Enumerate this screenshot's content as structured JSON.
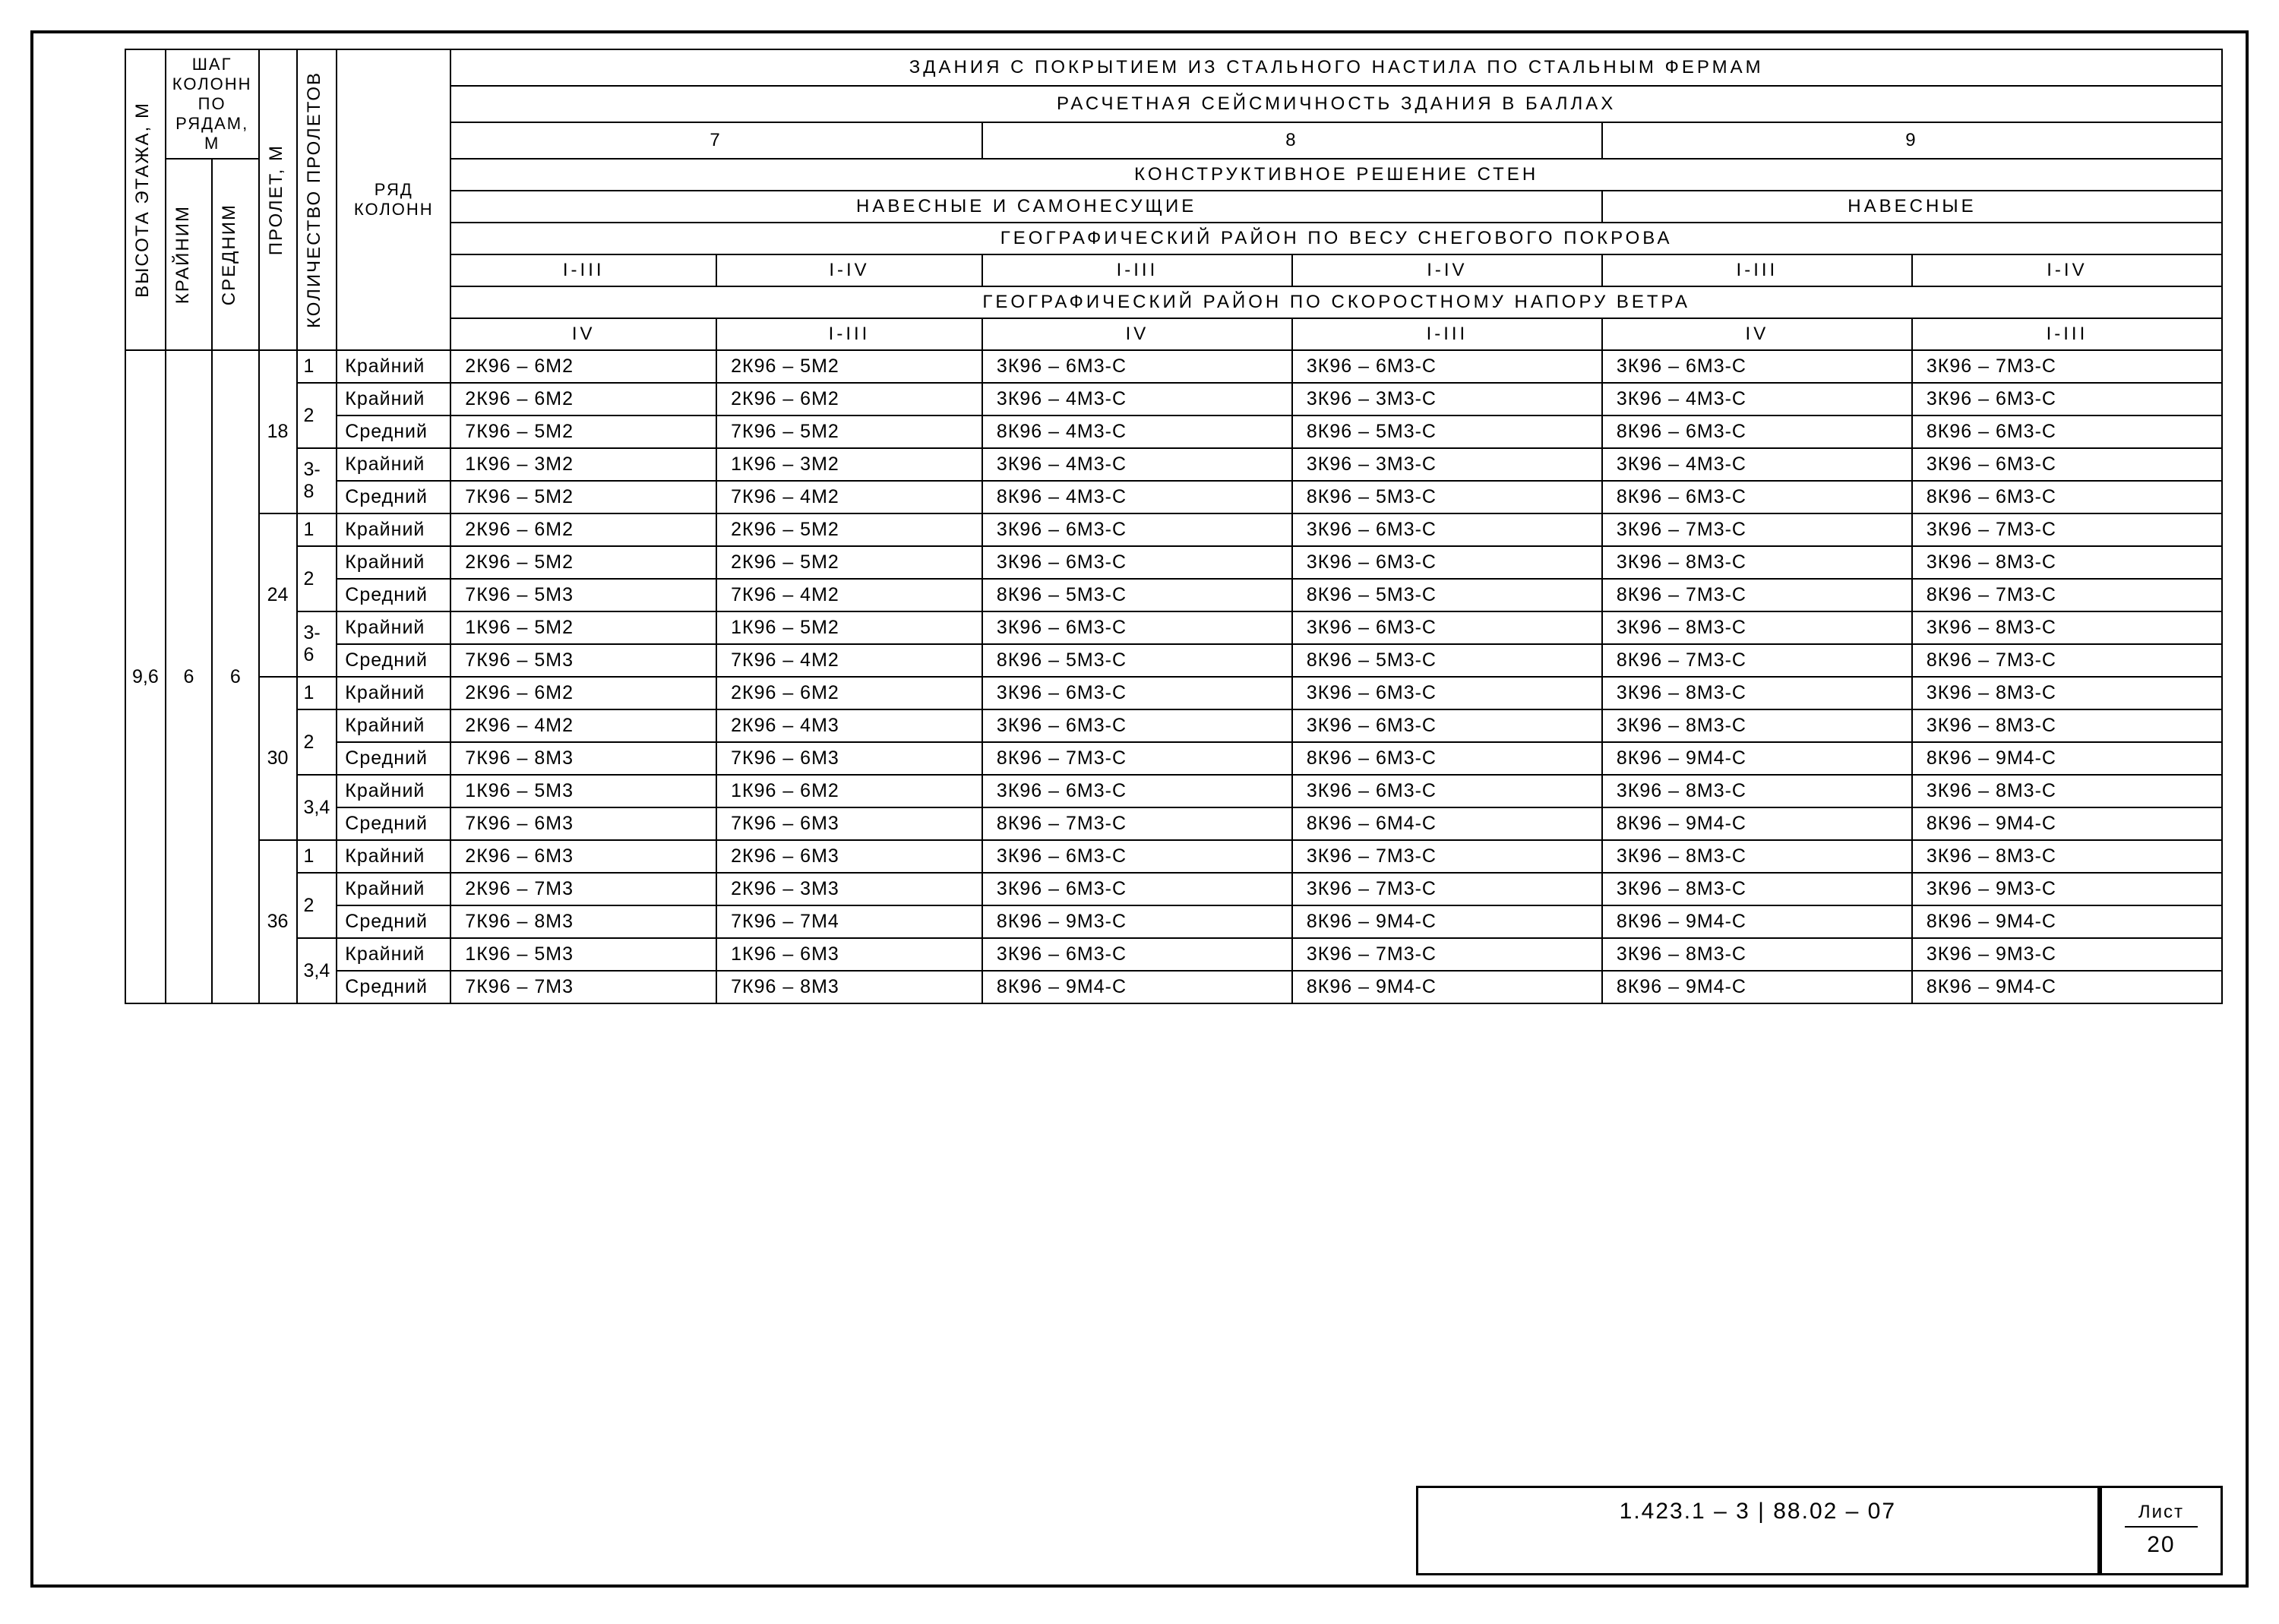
{
  "frame": {
    "border_color": "#000000",
    "background_color": "#ffffff"
  },
  "headers": {
    "col_height": "Высота этажа, м",
    "col_step_group": "Шаг колонн по рядам, м",
    "col_edge": "Крайним",
    "col_middle": "Средним",
    "col_span": "Пролет, м",
    "col_count": "Количество пролетов",
    "col_row": "Ряд колонн",
    "h1": "Здания с покрытием из стального настила по стальным фермам",
    "h2": "Расчетная сейсмичность здания в баллах",
    "h3_7": "7",
    "h3_8": "8",
    "h3_9": "9",
    "h4": "Конструктивное решение стен",
    "h5_a": "Навесные и самонесущие",
    "h5_b": "Навесные",
    "h6": "Географический район по весу снегового покрова",
    "h7_a": "I-III",
    "h7_b": "I-IV",
    "h8": "Географический район по скоростному напору ветра",
    "h9_a": "IV",
    "h9_b": "I-III"
  },
  "left": {
    "height": "9,6",
    "step_edge": "6",
    "step_mid": "6"
  },
  "spans": [
    "18",
    "24",
    "30",
    "36"
  ],
  "label_edge": "Крайний",
  "label_mid": "Средний",
  "groups": [
    {
      "span": "18",
      "blocks": [
        {
          "cnt": "1",
          "rows": [
            {
              "lbl": "Крайний",
              "c": [
                "2К96 – 6М2",
                "2К96 – 5М2",
                "3К96 – 6М3-С",
                "3К96 – 6М3-С",
                "3К96 – 6М3-С",
                "3К96 – 7М3-С"
              ]
            }
          ]
        },
        {
          "cnt": "2",
          "rows": [
            {
              "lbl": "Крайний",
              "c": [
                "2К96 – 6М2",
                "2К96 – 6М2",
                "3К96 – 4М3-С",
                "3К96 – 3М3-С",
                "3К96 – 4М3-С",
                "3К96 – 6М3-С"
              ]
            },
            {
              "lbl": "Средний",
              "c": [
                "7К96 – 5М2",
                "7К96 – 5М2",
                "8К96 – 4М3-С",
                "8К96 – 5М3-С",
                "8К96 – 6М3-С",
                "8К96 – 6М3-С"
              ]
            }
          ]
        },
        {
          "cnt": "3-8",
          "rows": [
            {
              "lbl": "Крайний",
              "c": [
                "1К96 – 3М2",
                "1К96 – 3М2",
                "3К96 – 4М3-С",
                "3К96 – 3М3-С",
                "3К96 – 4М3-С",
                "3К96 – 6М3-С"
              ]
            },
            {
              "lbl": "Средний",
              "c": [
                "7К96 – 5М2",
                "7К96 – 4М2",
                "8К96 – 4М3-С",
                "8К96 – 5М3-С",
                "8К96 – 6М3-С",
                "8К96 – 6М3-С"
              ]
            }
          ]
        }
      ]
    },
    {
      "span": "24",
      "blocks": [
        {
          "cnt": "1",
          "rows": [
            {
              "lbl": "Крайний",
              "c": [
                "2К96 – 6М2",
                "2К96 – 5М2",
                "3К96 – 6М3-С",
                "3К96 – 6М3-С",
                "3К96 – 7М3-С",
                "3К96 – 7М3-С"
              ]
            }
          ]
        },
        {
          "cnt": "2",
          "rows": [
            {
              "lbl": "Крайний",
              "c": [
                "2К96 – 5М2",
                "2К96 – 5М2",
                "3К96 – 6М3-С",
                "3К96 – 6М3-С",
                "3К96 – 8М3-С",
                "3К96 – 8М3-С"
              ]
            },
            {
              "lbl": "Средний",
              "c": [
                "7К96 – 5М3",
                "7К96 – 4М2",
                "8К96 – 5М3-С",
                "8К96 – 5М3-С",
                "8К96 – 7М3-С",
                "8К96 – 7М3-С"
              ]
            }
          ]
        },
        {
          "cnt": "3-6",
          "rows": [
            {
              "lbl": "Крайний",
              "c": [
                "1К96 – 5М2",
                "1К96 – 5М2",
                "3К96 – 6М3-С",
                "3К96 – 6М3-С",
                "3К96 – 8М3-С",
                "3К96 – 8М3-С"
              ]
            },
            {
              "lbl": "Средний",
              "c": [
                "7К96 – 5М3",
                "7К96 – 4М2",
                "8К96 – 5М3-С",
                "8К96 – 5М3-С",
                "8К96 – 7М3-С",
                "8К96 – 7М3-С"
              ]
            }
          ]
        }
      ]
    },
    {
      "span": "30",
      "blocks": [
        {
          "cnt": "1",
          "rows": [
            {
              "lbl": "Крайний",
              "c": [
                "2К96 – 6М2",
                "2К96 – 6М2",
                "3К96 – 6М3-С",
                "3К96 – 6М3-С",
                "3К96 – 8М3-С",
                "3К96 – 8М3-С"
              ]
            }
          ]
        },
        {
          "cnt": "2",
          "rows": [
            {
              "lbl": "Крайний",
              "c": [
                "2К96 – 4М2",
                "2К96 – 4М3",
                "3К96 – 6М3-С",
                "3К96 – 6М3-С",
                "3К96 – 8М3-С",
                "3К96 – 8М3-С"
              ]
            },
            {
              "lbl": "Средний",
              "c": [
                "7К96 – 8М3",
                "7К96 – 6М3",
                "8К96 – 7М3-С",
                "8К96 – 6М3-С",
                "8К96 – 9М4-С",
                "8К96 – 9М4-С"
              ]
            }
          ]
        },
        {
          "cnt": "3,4",
          "rows": [
            {
              "lbl": "Крайний",
              "c": [
                "1К96 – 5М3",
                "1К96 – 6М2",
                "3К96 – 6М3-С",
                "3К96 – 6М3-С",
                "3К96 – 8М3-С",
                "3К96 – 8М3-С"
              ]
            },
            {
              "lbl": "Средний",
              "c": [
                "7К96 – 6М3",
                "7К96 – 6М3",
                "8К96 – 7М3-С",
                "8К96 – 6М4-С",
                "8К96 – 9М4-С",
                "8К96 – 9М4-С"
              ]
            }
          ]
        }
      ]
    },
    {
      "span": "36",
      "blocks": [
        {
          "cnt": "1",
          "rows": [
            {
              "lbl": "Крайний",
              "c": [
                "2К96 – 6М3",
                "2К96 – 6М3",
                "3К96 – 6М3-С",
                "3К96 – 7М3-С",
                "3К96 – 8М3-С",
                "3К96 – 8М3-С"
              ]
            }
          ]
        },
        {
          "cnt": "2",
          "rows": [
            {
              "lbl": "Крайний",
              "c": [
                "2К96 – 7М3",
                "2К96 – 3М3",
                "3К96 – 6М3-С",
                "3К96 – 7М3-С",
                "3К96 – 8М3-С",
                "3К96 – 9М3-С"
              ]
            },
            {
              "lbl": "Средний",
              "c": [
                "7К96 – 8М3",
                "7К96 – 7М4",
                "8К96 – 9М3-С",
                "8К96 – 9М4-С",
                "8К96 – 9М4-С",
                "8К96 – 9М4-С"
              ]
            }
          ]
        },
        {
          "cnt": "3,4",
          "rows": [
            {
              "lbl": "Крайний",
              "c": [
                "1К96 – 5М3",
                "1К96 – 6М3",
                "3К96 – 6М3-С",
                "3К96 – 7М3-С",
                "3К96 – 8М3-С",
                "3К96 – 9М3-С"
              ]
            },
            {
              "lbl": "Средний",
              "c": [
                "7К96 – 7М3",
                "7К96 – 8М3",
                "8К96 – 9М4-С",
                "8К96 – 9М4-С",
                "8К96 – 9М4-С",
                "8К96 – 9М4-С"
              ]
            }
          ]
        }
      ]
    }
  ],
  "title": {
    "doc": "1.423.1 – 3 | 88.02 – 07",
    "sheet_label": "Лист",
    "sheet_num": "20"
  }
}
